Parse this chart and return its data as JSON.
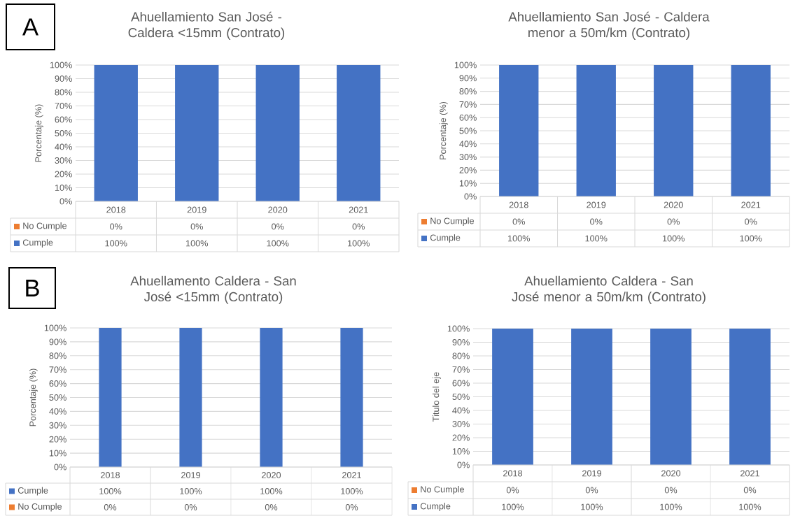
{
  "chart_data": [
    {
      "type": "bar",
      "stacked": true,
      "title": "Ahuellamiento San José - Caldera <15mm (Contrato)",
      "ylabel": "Porcentaje (%)",
      "annotations": [
        "A"
      ],
      "categories": [
        "2018",
        "2019",
        "2020",
        "2021"
      ],
      "series": [
        {
          "name": "No Cumple",
          "color": "#ed7d31",
          "values": [
            0,
            0,
            0,
            0
          ],
          "value_labels": [
            "0%",
            "0%",
            "0%",
            "0%"
          ]
        },
        {
          "name": "Cumple",
          "color": "#4472c4",
          "values": [
            100,
            100,
            100,
            100
          ],
          "value_labels": [
            "100%",
            "100%",
            "100%",
            "100%"
          ]
        }
      ],
      "ylim": [
        0,
        100
      ],
      "yticks": [
        {
          "value": 0,
          "label": "0%"
        },
        {
          "value": 10,
          "label": "10%"
        },
        {
          "value": 20,
          "label": "20%"
        },
        {
          "value": 30,
          "label": "30%"
        },
        {
          "value": 40,
          "label": "40%"
        },
        {
          "value": 50,
          "label": "50%"
        },
        {
          "value": 60,
          "label": "60%"
        },
        {
          "value": 70,
          "label": "70%"
        },
        {
          "value": 80,
          "label": "80%"
        },
        {
          "value": 90,
          "label": "90%"
        },
        {
          "value": 100,
          "label": "100%"
        }
      ],
      "grid": "y",
      "legend": "bottom"
    },
    {
      "type": "bar",
      "stacked": true,
      "title": "Ahuellamiento San José - Caldera menor a 50m/km (Contrato)",
      "ylabel": "Porcentaje (%)",
      "categories": [
        "2018",
        "2019",
        "2020",
        "2021"
      ],
      "series": [
        {
          "name": "No Cumple",
          "color": "#ed7d31",
          "values": [
            0,
            0,
            0,
            0
          ],
          "value_labels": [
            "0%",
            "0%",
            "0%",
            "0%"
          ]
        },
        {
          "name": "Cumple",
          "color": "#4472c4",
          "values": [
            100,
            100,
            100,
            100
          ],
          "value_labels": [
            "100%",
            "100%",
            "100%",
            "100%"
          ]
        }
      ],
      "ylim": [
        0,
        100
      ],
      "yticks": [
        {
          "value": 0,
          "label": "0%"
        },
        {
          "value": 10,
          "label": "10%"
        },
        {
          "value": 20,
          "label": "20%"
        },
        {
          "value": 30,
          "label": "30%"
        },
        {
          "value": 40,
          "label": "40%"
        },
        {
          "value": 50,
          "label": "50%"
        },
        {
          "value": 60,
          "label": "60%"
        },
        {
          "value": 70,
          "label": "70%"
        },
        {
          "value": 80,
          "label": "80%"
        },
        {
          "value": 90,
          "label": "90%"
        },
        {
          "value": 100,
          "label": "100%"
        }
      ],
      "grid": "y",
      "legend": "bottom"
    },
    {
      "type": "bar",
      "stacked": true,
      "title": "Ahuellamento Caldera - San José <15mm (Contrato)",
      "ylabel": "Porcentaje (%)",
      "annotations": [
        "B"
      ],
      "categories": [
        "2018",
        "2019",
        "2020",
        "2021"
      ],
      "series": [
        {
          "name": "Cumple",
          "color": "#4472c4",
          "values": [
            100,
            100,
            100,
            100
          ],
          "value_labels": [
            "100%",
            "100%",
            "100%",
            "100%"
          ]
        },
        {
          "name": "No Cumple",
          "color": "#ed7d31",
          "values": [
            0,
            0,
            0,
            0
          ],
          "value_labels": [
            "0%",
            "0%",
            "0%",
            "0%"
          ]
        }
      ],
      "ylim": [
        0,
        100
      ],
      "yticks": [
        {
          "value": 0,
          "label": "0%"
        },
        {
          "value": 10,
          "label": "10%"
        },
        {
          "value": 20,
          "label": "20%"
        },
        {
          "value": 30,
          "label": "30%"
        },
        {
          "value": 40,
          "label": "40%"
        },
        {
          "value": 50,
          "label": "50%"
        },
        {
          "value": 60,
          "label": "60%"
        },
        {
          "value": 70,
          "label": "70%"
        },
        {
          "value": 80,
          "label": "80%"
        },
        {
          "value": 90,
          "label": "90%"
        },
        {
          "value": 100,
          "label": "100%"
        }
      ],
      "grid": "y",
      "legend": "bottom"
    },
    {
      "type": "bar",
      "stacked": true,
      "title": "Ahuellamiento Caldera - San José menor a 50m/km (Contrato)",
      "ylabel": "Titulo del eje",
      "categories": [
        "2018",
        "2019",
        "2020",
        "2021"
      ],
      "series": [
        {
          "name": "No Cumple",
          "color": "#ed7d31",
          "values": [
            0,
            0,
            0,
            0
          ],
          "value_labels": [
            "0%",
            "0%",
            "0%",
            "0%"
          ]
        },
        {
          "name": "Cumple",
          "color": "#4472c4",
          "values": [
            100,
            100,
            100,
            100
          ],
          "value_labels": [
            "100%",
            "100%",
            "100%",
            "100%"
          ]
        }
      ],
      "ylim": [
        0,
        100
      ],
      "yticks": [
        {
          "value": 0,
          "label": "0%"
        },
        {
          "value": 10,
          "label": "10%"
        },
        {
          "value": 20,
          "label": "20%"
        },
        {
          "value": 30,
          "label": "30%"
        },
        {
          "value": 40,
          "label": "40%"
        },
        {
          "value": 50,
          "label": "50%"
        },
        {
          "value": 60,
          "label": "60%"
        },
        {
          "value": 70,
          "label": "70%"
        },
        {
          "value": 80,
          "label": "80%"
        },
        {
          "value": 90,
          "label": "90%"
        },
        {
          "value": 100,
          "label": "100%"
        }
      ],
      "grid": "y",
      "legend": "bottom"
    }
  ]
}
